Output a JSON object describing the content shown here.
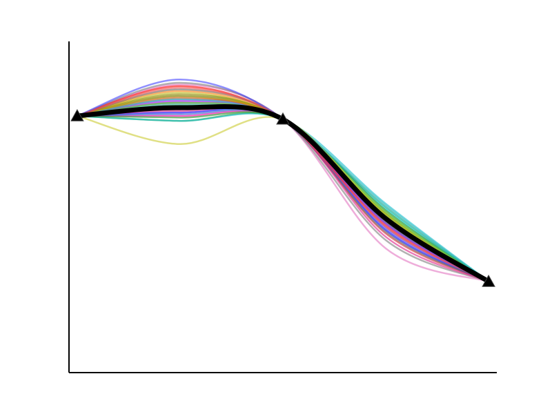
{
  "chart_data": {
    "type": "line",
    "title": "",
    "xlabel": "",
    "ylabel": "",
    "show_ticks": false,
    "grid": false,
    "legend": "none",
    "xlim": [
      -0.02,
      1.02
    ],
    "ylim": [
      -0.55,
      1.45
    ],
    "x": [
      0,
      0.25,
      0.5,
      0.75,
      1
    ],
    "mean": {
      "values": [
        1.0,
        1.05,
        0.98,
        0.38,
        0.0
      ],
      "color": "#000000",
      "anchor_marker": "triangle"
    },
    "anchors": {
      "x": [
        0,
        0.5,
        1
      ],
      "y": [
        1.0,
        0.98,
        0.0
      ]
    },
    "series": [
      {
        "color": "#e377c2",
        "values": [
          1.0,
          1.19,
          0.98,
          0.2,
          0.0
        ]
      },
      {
        "color": "#1f77b4",
        "values": [
          1.0,
          1.12,
          0.98,
          0.37,
          0.0
        ]
      },
      {
        "color": "#ff7f0e",
        "values": [
          1.0,
          1.15,
          0.98,
          0.36,
          0.0
        ]
      },
      {
        "color": "#2ca02c",
        "values": [
          1.0,
          0.97,
          0.98,
          0.41,
          0.0
        ]
      },
      {
        "color": "#d62728",
        "values": [
          1.0,
          1.05,
          0.98,
          0.29,
          0.0
        ]
      },
      {
        "color": "#9467bd",
        "values": [
          1.0,
          1.1,
          0.98,
          0.33,
          0.0
        ]
      },
      {
        "color": "#8c564b",
        "values": [
          1.0,
          1.08,
          0.98,
          0.39,
          0.0
        ]
      },
      {
        "color": "#7f7f7f",
        "values": [
          1.0,
          1.2,
          0.98,
          0.25,
          0.0
        ]
      },
      {
        "color": "#bcbd22",
        "values": [
          1.0,
          1.14,
          0.98,
          0.42,
          0.0
        ]
      },
      {
        "color": "#17becf",
        "values": [
          1.0,
          0.97,
          0.98,
          0.47,
          0.0
        ]
      },
      {
        "color": "#0000ff",
        "values": [
          1.0,
          1.02,
          0.98,
          0.31,
          0.0
        ]
      },
      {
        "color": "#00aa00",
        "values": [
          1.0,
          1.06,
          0.98,
          0.4,
          0.0
        ]
      },
      {
        "color": "#ff0000",
        "values": [
          1.0,
          1.18,
          0.98,
          0.34,
          0.0
        ]
      },
      {
        "color": "#aa00ff",
        "values": [
          1.0,
          1.09,
          0.98,
          0.35,
          0.0
        ]
      },
      {
        "color": "#ff00aa",
        "values": [
          1.0,
          1.0,
          0.98,
          0.38,
          0.0
        ]
      },
      {
        "color": "#00cccc",
        "values": [
          1.0,
          1.04,
          0.98,
          0.44,
          0.0
        ]
      },
      {
        "color": "#888800",
        "values": [
          1.0,
          1.13,
          0.98,
          0.37,
          0.0
        ]
      },
      {
        "color": "#4444ff",
        "values": [
          1.0,
          1.22,
          0.98,
          0.32,
          0.0
        ]
      },
      {
        "color": "#228b22",
        "values": [
          1.0,
          0.99,
          0.98,
          0.43,
          0.0
        ]
      },
      {
        "color": "#cc5500",
        "values": [
          1.0,
          1.11,
          0.98,
          0.39,
          0.0
        ]
      },
      {
        "color": "#666666",
        "values": [
          1.0,
          1.16,
          0.98,
          0.3,
          0.0
        ]
      },
      {
        "color": "#dd2288",
        "values": [
          1.0,
          1.03,
          0.98,
          0.27,
          0.0
        ]
      },
      {
        "color": "#22aa88",
        "values": [
          1.0,
          1.07,
          0.98,
          0.45,
          0.0
        ]
      },
      {
        "color": "#ccaa00",
        "values": [
          1.0,
          1.12,
          0.98,
          0.41,
          0.0
        ]
      },
      {
        "color": "#3366cc",
        "values": [
          1.0,
          1.01,
          0.98,
          0.36,
          0.0
        ]
      },
      {
        "color": "#55cc55",
        "values": [
          1.0,
          1.08,
          0.98,
          0.42,
          0.0
        ]
      },
      {
        "color": "#ee5555",
        "values": [
          1.0,
          1.17,
          0.98,
          0.33,
          0.0
        ]
      },
      {
        "color": "#7755cc",
        "values": [
          1.0,
          1.05,
          0.98,
          0.35,
          0.0
        ]
      },
      {
        "color": "#cccc33",
        "values": [
          1.0,
          0.83,
          0.98,
          0.4,
          0.0
        ]
      },
      {
        "color": "#33bbbb",
        "values": [
          1.0,
          1.1,
          0.98,
          0.46,
          0.0
        ]
      }
    ]
  }
}
